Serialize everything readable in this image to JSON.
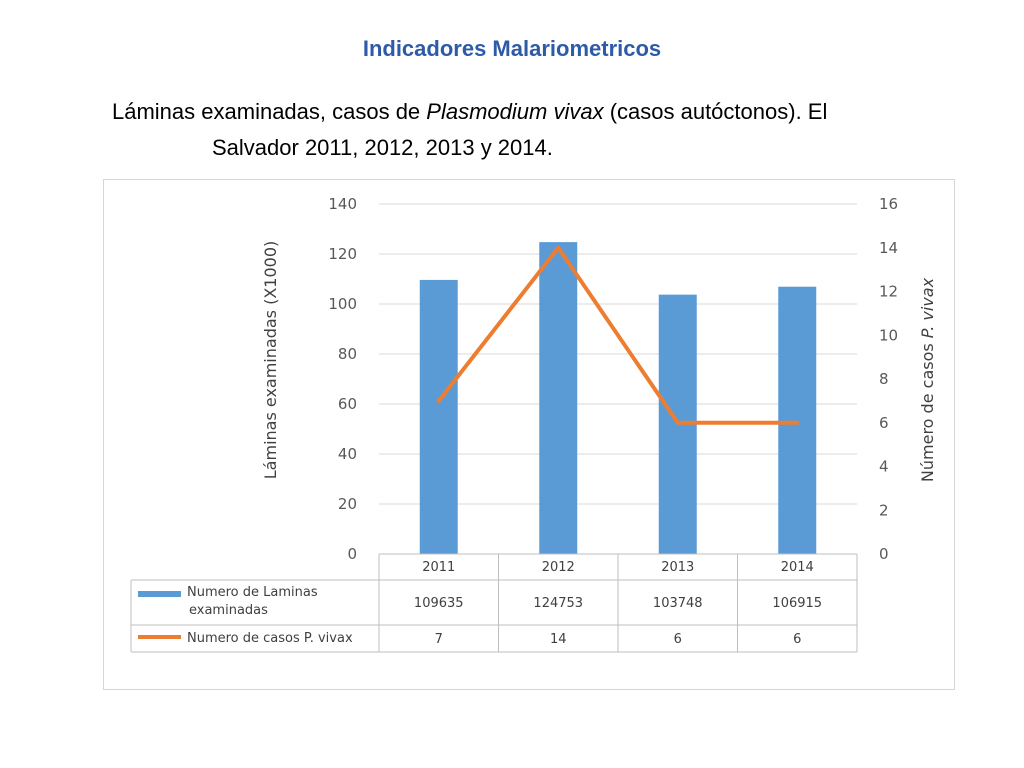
{
  "page": {
    "title": "Indicadores Malariometricos",
    "subtitle_pre": "Láminas examinadas, casos de ",
    "subtitle_italic": "Plasmodium vivax",
    "subtitle_post": " (casos autóctonos). El",
    "subtitle_line2": "Salvador 2011, 2012, 2013 y 2014."
  },
  "chart_data": {
    "type": "bar",
    "categories": [
      "2011",
      "2012",
      "2013",
      "2014"
    ],
    "series": [
      {
        "name_line1": "Numero de Laminas",
        "name_line2": "examinadas",
        "type": "bar",
        "axis": "left",
        "color": "#5b9bd5",
        "values": [
          109.635,
          124.753,
          103.748,
          106.915
        ],
        "table_values": [
          "109635",
          "124753",
          "103748",
          "106915"
        ]
      },
      {
        "name": "Numero de casos P. vivax",
        "type": "line",
        "axis": "right",
        "color": "#ed7d31",
        "values": [
          7,
          14,
          6,
          6
        ],
        "table_values": [
          "7",
          "14",
          "6",
          "6"
        ]
      }
    ],
    "ylabel_left": "Láminas examinadas (X1000)",
    "ylabel_right_pre": "Número de casos ",
    "ylabel_right_italic": "P. vivax",
    "ylim_left": [
      0,
      140
    ],
    "ylim_right": [
      0,
      16
    ],
    "left_ticks": [
      "0",
      "20",
      "40",
      "60",
      "80",
      "100",
      "120",
      "140"
    ],
    "right_ticks": [
      "0",
      "2",
      "4",
      "6",
      "8",
      "10",
      "12",
      "14",
      "16"
    ],
    "grid": true,
    "data_table": true
  }
}
